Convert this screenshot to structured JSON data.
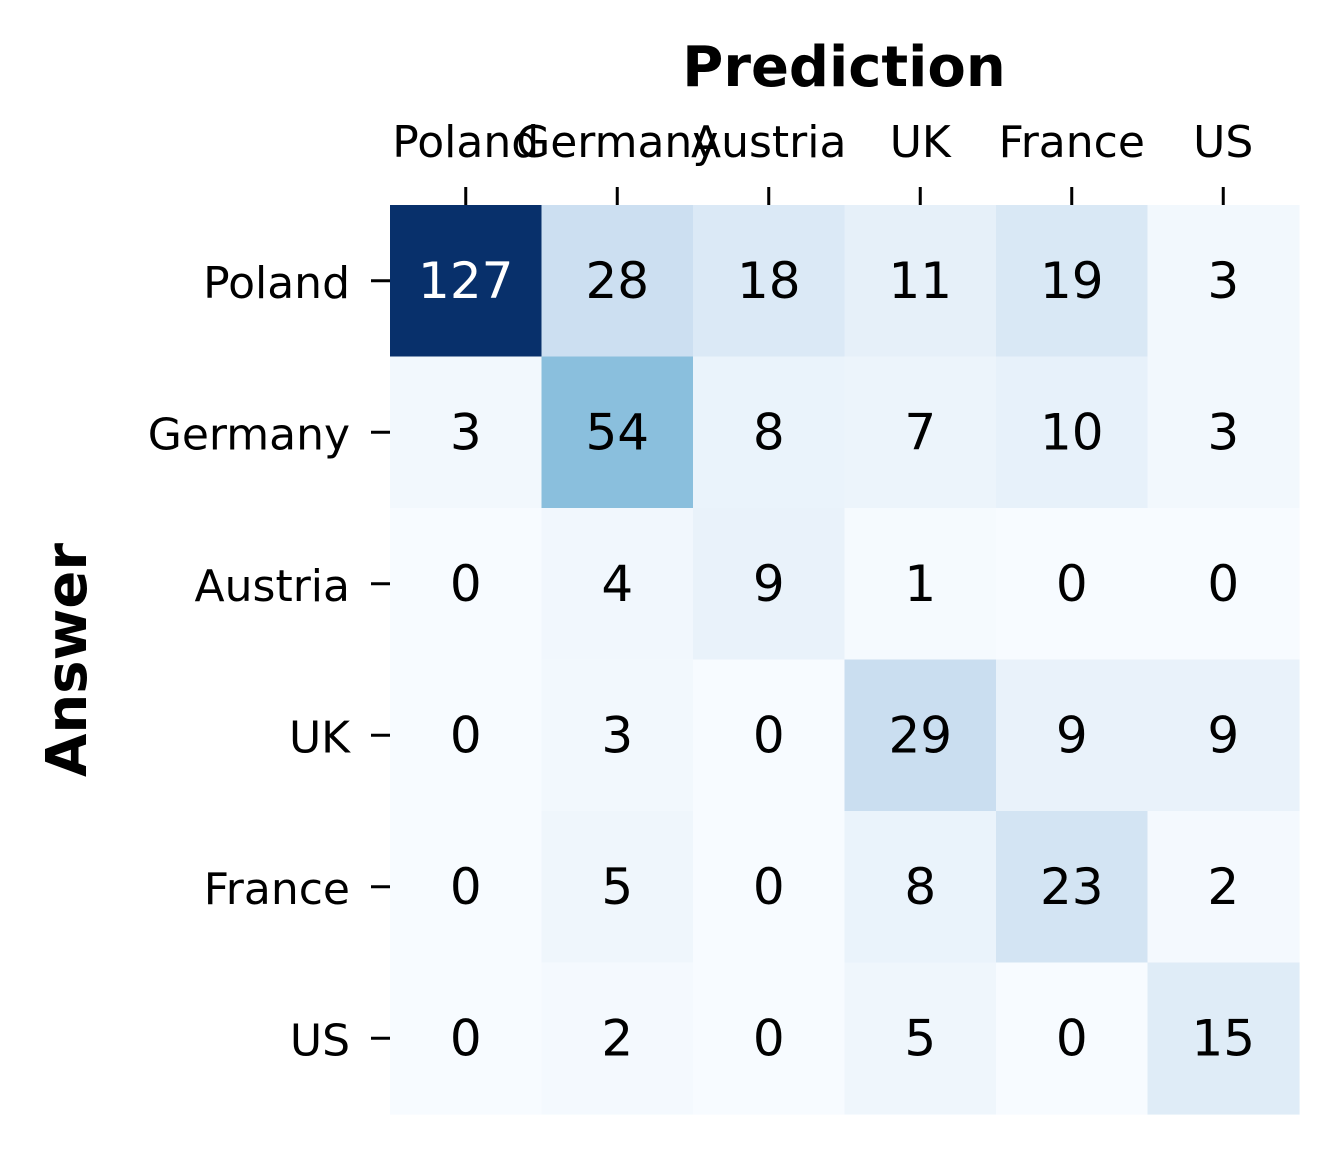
{
  "chart_data": {
    "type": "heatmap",
    "colormap": "Blues",
    "xlabel": "Prediction",
    "ylabel": "Answer",
    "x_categories": [
      "Poland",
      "Germany",
      "Austria",
      "UK",
      "France",
      "US"
    ],
    "y_categories": [
      "Poland",
      "Germany",
      "Austria",
      "UK",
      "France",
      "US"
    ],
    "values": [
      [
        127,
        28,
        18,
        11,
        19,
        3
      ],
      [
        3,
        54,
        8,
        7,
        10,
        3
      ],
      [
        0,
        4,
        9,
        1,
        0,
        0
      ],
      [
        0,
        3,
        0,
        29,
        9,
        9
      ],
      [
        0,
        5,
        0,
        8,
        23,
        2
      ],
      [
        0,
        2,
        0,
        5,
        0,
        15
      ]
    ],
    "value_range": [
      0,
      127
    ],
    "colorbar": false,
    "x_axis_position": "top"
  }
}
